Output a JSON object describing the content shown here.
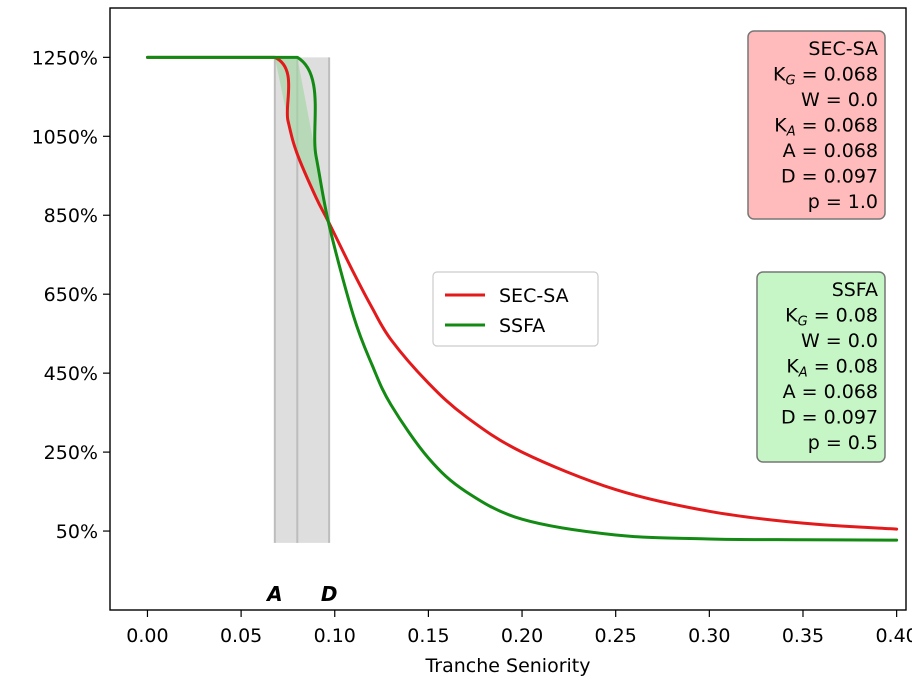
{
  "chart_data": {
    "type": "line",
    "xlabel": "Tranche Seniority",
    "ylabel": "",
    "xlim": [
      -0.02,
      0.405
    ],
    "ylim": [
      -150,
      1375
    ],
    "x_ticks": [
      0.0,
      0.05,
      0.1,
      0.15,
      0.2,
      0.25,
      0.3,
      0.35,
      0.4
    ],
    "x_tick_labels": [
      "0.00",
      "0.05",
      "0.10",
      "0.15",
      "0.20",
      "0.25",
      "0.30",
      "0.35",
      "0.40"
    ],
    "y_ticks": [
      50,
      250,
      450,
      650,
      850,
      1050,
      1250
    ],
    "y_tick_labels": [
      "50%",
      "250%",
      "450%",
      "650%",
      "850%",
      "1050%",
      "1250%"
    ],
    "grid": false,
    "legend": {
      "placement": "center",
      "entries": [
        "SEC-SA",
        "SSFA"
      ]
    },
    "series": [
      {
        "name": "SEC-SA",
        "color": "#e31a1c",
        "x": [
          0.0,
          0.068,
          0.075,
          0.08,
          0.09,
          0.097,
          0.11,
          0.12,
          0.13,
          0.15,
          0.17,
          0.2,
          0.25,
          0.3,
          0.35,
          0.4
        ],
        "values": [
          1250,
          1250,
          1090,
          1005,
          895,
          830,
          705,
          615,
          535,
          425,
          340,
          250,
          155,
          100,
          70,
          55
        ]
      },
      {
        "name": "SSFA",
        "color": "#138a13",
        "x": [
          0.0,
          0.08,
          0.09,
          0.097,
          0.11,
          0.12,
          0.13,
          0.15,
          0.17,
          0.2,
          0.25,
          0.3,
          0.35,
          0.4
        ],
        "values": [
          1250,
          1250,
          1000,
          825,
          595,
          470,
          370,
          235,
          150,
          80,
          40,
          30,
          28,
          27
        ]
      }
    ],
    "shaded_regions": [
      {
        "kind": "gray",
        "x0": 0.068,
        "x1": 0.097,
        "y_bottom": 20,
        "y_top": 1250
      },
      {
        "kind": "green",
        "note": "between the two curves where SSFA exceeds SEC-SA"
      }
    ],
    "vertical_lines": [
      0.068,
      0.08,
      0.097
    ],
    "markers": [
      {
        "label": "A",
        "x": 0.068
      },
      {
        "label": "D",
        "x": 0.097
      }
    ],
    "info_boxes": [
      {
        "title": "SEC-SA",
        "color": "#ffbbbb",
        "lines": [
          {
            "base": "K",
            "sub": "G",
            "rest": " = 0.068"
          },
          {
            "base": "W = 0.0",
            "sub": "",
            "rest": ""
          },
          {
            "base": "K",
            "sub": "A",
            "rest": " = 0.068"
          },
          {
            "base": "A = 0.068",
            "sub": "",
            "rest": ""
          },
          {
            "base": "D = 0.097",
            "sub": "",
            "rest": ""
          },
          {
            "base": "p = 1.0",
            "sub": "",
            "rest": ""
          }
        ]
      },
      {
        "title": "SSFA",
        "color": "#c6f5c6",
        "lines": [
          {
            "base": "K",
            "sub": "G",
            "rest": " = 0.08"
          },
          {
            "base": "W = 0.0",
            "sub": "",
            "rest": ""
          },
          {
            "base": "K",
            "sub": "A",
            "rest": " = 0.08"
          },
          {
            "base": "A = 0.068",
            "sub": "",
            "rest": ""
          },
          {
            "base": "D = 0.097",
            "sub": "",
            "rest": ""
          },
          {
            "base": "p = 0.5",
            "sub": "",
            "rest": ""
          }
        ]
      }
    ]
  }
}
